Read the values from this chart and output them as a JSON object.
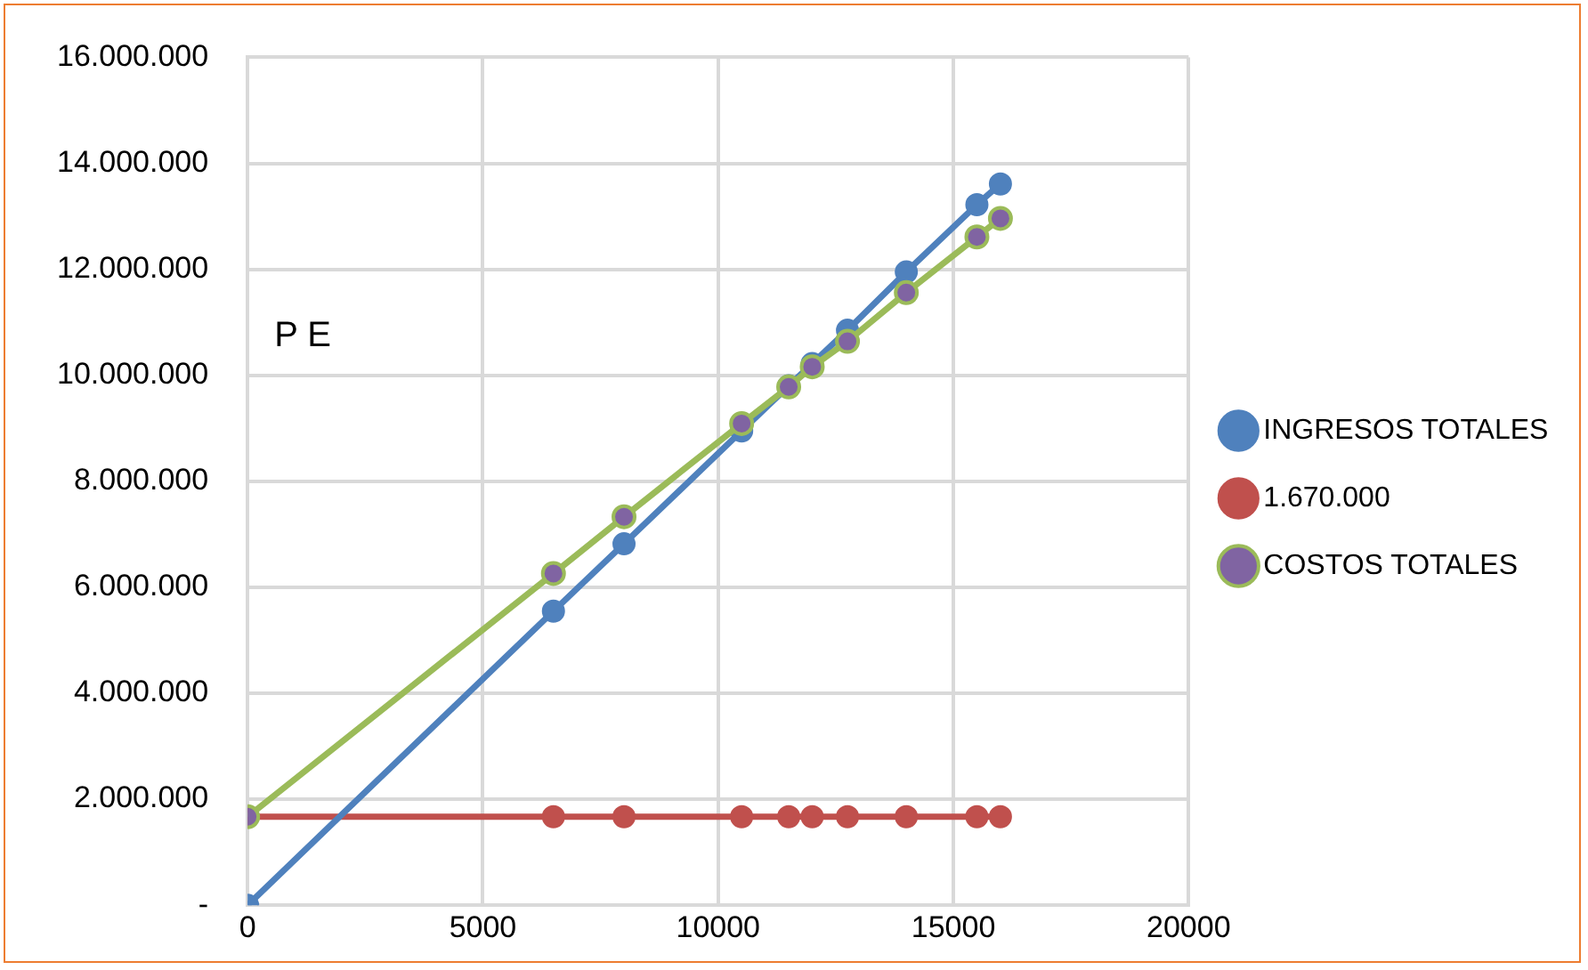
{
  "chart_data": {
    "type": "line",
    "x": [
      0,
      6500,
      8000,
      10500,
      11500,
      12000,
      12750,
      14000,
      15500,
      16000
    ],
    "series": [
      {
        "name": "INGRESOS TOTALES",
        "color": "#4f81bd",
        "values": [
          0,
          5550000,
          6820000,
          8950000,
          9800000,
          10220000,
          10850000,
          11950000,
          13220000,
          13610000
        ]
      },
      {
        "name": "1.670.000",
        "color": "#c0504d",
        "values": [
          1670000,
          1670000,
          1670000,
          1670000,
          1670000,
          1670000,
          1670000,
          1670000,
          1670000,
          1670000
        ]
      },
      {
        "name": "COSTOS TOTALES",
        "color": "#9bbb59",
        "values": [
          1670000,
          6260000,
          7330000,
          9090000,
          9780000,
          10160000,
          10640000,
          11560000,
          12610000,
          12960000
        ]
      }
    ],
    "xlim": [
      0,
      20000
    ],
    "xticks": [
      0,
      5000,
      10000,
      15000,
      20000
    ],
    "ylim": [
      0,
      16000000
    ],
    "yticks": [
      {
        "value": 0,
        "label": "-"
      },
      {
        "value": 2000000,
        "label": "2.000.000"
      },
      {
        "value": 4000000,
        "label": "4.000.000"
      },
      {
        "value": 6000000,
        "label": "6.000.000"
      },
      {
        "value": 8000000,
        "label": "8.000.000"
      },
      {
        "value": 10000000,
        "label": "10.000.000"
      },
      {
        "value": 12000000,
        "label": "12.000.000"
      },
      {
        "value": 14000000,
        "label": "14.000.000"
      },
      {
        "value": 16000000,
        "label": "16.000.000"
      }
    ],
    "annotations": [
      "P E"
    ],
    "grid": true,
    "legend": "right",
    "marker": "circle",
    "line_style": "solid"
  }
}
